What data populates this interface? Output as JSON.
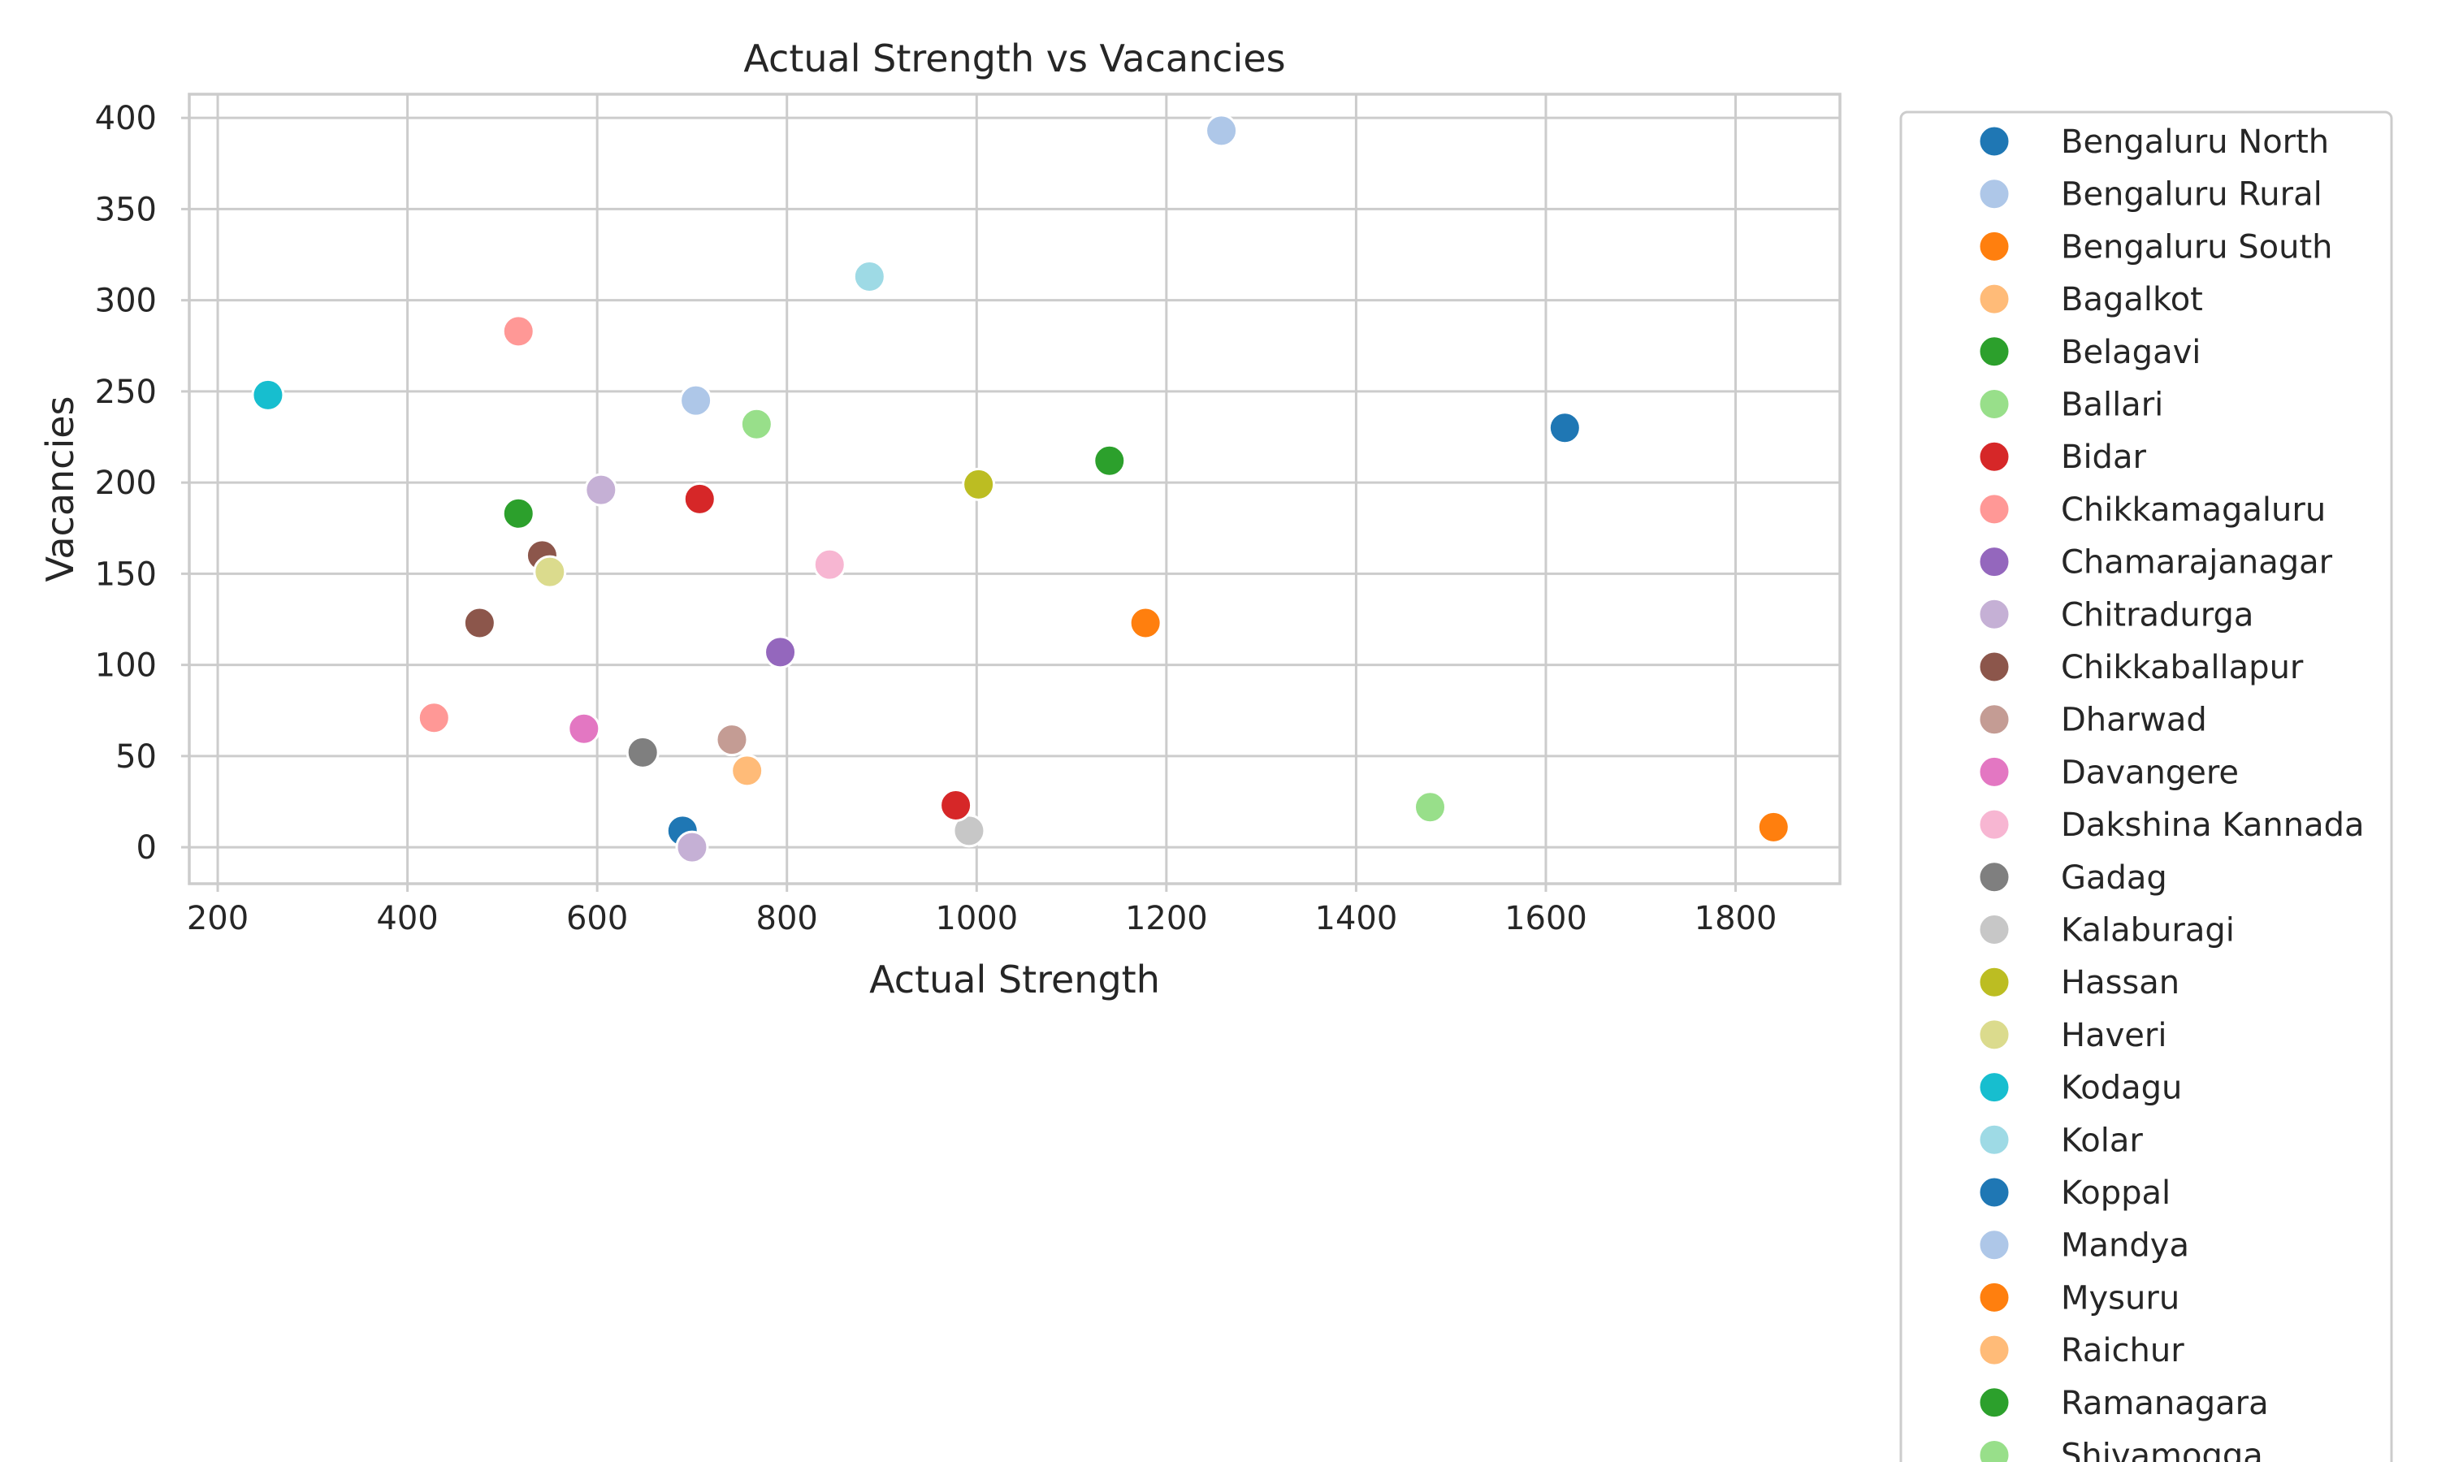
{
  "chart_data": {
    "type": "scatter",
    "title": "Actual Strength vs Vacancies",
    "xlabel": "Actual Strength",
    "ylabel": "Vacancies",
    "xlim": [
      170,
      1910
    ],
    "ylim": [
      -20,
      413
    ],
    "x_ticks": [
      200,
      400,
      600,
      800,
      1000,
      1200,
      1400,
      1600,
      1800
    ],
    "y_ticks": [
      0,
      50,
      100,
      150,
      200,
      250,
      300,
      350,
      400
    ],
    "grid": true,
    "legend_position": "outside-right",
    "series": [
      {
        "name": "Bengaluru North",
        "color": "#1f77b4",
        "points": [
          [
            1620,
            230
          ]
        ]
      },
      {
        "name": "Bengaluru Rural",
        "color": "#aec7e8",
        "points": [
          [
            704,
            245
          ]
        ]
      },
      {
        "name": "Bengaluru South",
        "color": "#ff7f0e",
        "points": [
          [
            1178,
            123
          ]
        ]
      },
      {
        "name": "Bagalkot",
        "color": "#ffbb78",
        "points": [
          [
            758,
            42
          ]
        ]
      },
      {
        "name": "Belagavi",
        "color": "#2ca02c",
        "points": [
          [
            1140,
            212
          ]
        ]
      },
      {
        "name": "Ballari",
        "color": "#98df8a",
        "points": [
          [
            768,
            232
          ]
        ]
      },
      {
        "name": "Bidar",
        "color": "#d62728",
        "points": [
          [
            708,
            191
          ]
        ]
      },
      {
        "name": "Chikkamagaluru",
        "color": "#ff9896",
        "points": [
          [
            517,
            283
          ]
        ]
      },
      {
        "name": "Chamarajanagar",
        "color": "#9467bd",
        "points": [
          [
            793,
            107
          ]
        ]
      },
      {
        "name": "Chitradurga",
        "color": "#c5b0d5",
        "points": [
          [
            604,
            196
          ]
        ]
      },
      {
        "name": "Chikkaballapur",
        "color": "#8c564b",
        "points": [
          [
            542,
            160
          ]
        ]
      },
      {
        "name": "Dharwad",
        "color": "#c49c94",
        "points": [
          [
            742,
            59
          ]
        ]
      },
      {
        "name": "Davangere",
        "color": "#e377c2",
        "points": [
          [
            586,
            65
          ]
        ]
      },
      {
        "name": "Dakshina Kannada",
        "color": "#f7b6d2",
        "points": [
          [
            845,
            155
          ]
        ]
      },
      {
        "name": "Gadag",
        "color": "#7f7f7f",
        "points": [
          [
            648,
            52
          ]
        ]
      },
      {
        "name": "Kalaburagi",
        "color": "#c7c7c7",
        "points": [
          [
            992,
            9
          ]
        ]
      },
      {
        "name": "Hassan",
        "color": "#bcbd22",
        "points": [
          [
            1002,
            199
          ]
        ]
      },
      {
        "name": "Haveri",
        "color": "#dbdb8d",
        "points": [
          [
            550,
            151
          ]
        ]
      },
      {
        "name": "Kodagu",
        "color": "#17becf",
        "points": [
          [
            253,
            248
          ]
        ]
      },
      {
        "name": "Kolar",
        "color": "#9edae5",
        "points": [
          [
            887,
            313
          ]
        ]
      },
      {
        "name": "Koppal",
        "color": "#1f77b4",
        "points": [
          [
            690,
            9
          ]
        ]
      },
      {
        "name": "Mandya",
        "color": "#aec7e8",
        "points": [
          [
            1258,
            393
          ]
        ]
      },
      {
        "name": "Mysuru",
        "color": "#ff7f0e",
        "points": [
          [
            1840,
            11
          ]
        ]
      },
      {
        "name": "Raichur",
        "color": "#ffbb78",
        "points": []
      },
      {
        "name": "Ramanagara",
        "color": "#2ca02c",
        "points": [
          [
            517,
            183
          ]
        ]
      },
      {
        "name": "Shivamogga",
        "color": "#98df8a",
        "points": [
          [
            1478,
            22
          ]
        ]
      },
      {
        "name": "",
        "color": "#d62728",
        "points": [
          [
            978,
            23
          ]
        ]
      },
      {
        "name": "",
        "color": "#ff9896",
        "points": [
          [
            428,
            71
          ]
        ]
      },
      {
        "name": "",
        "color": "#c5b0d5",
        "points": [
          [
            700,
            0
          ]
        ]
      },
      {
        "name": "",
        "color": "#8c564b",
        "points": [
          [
            476,
            123
          ]
        ]
      }
    ]
  }
}
